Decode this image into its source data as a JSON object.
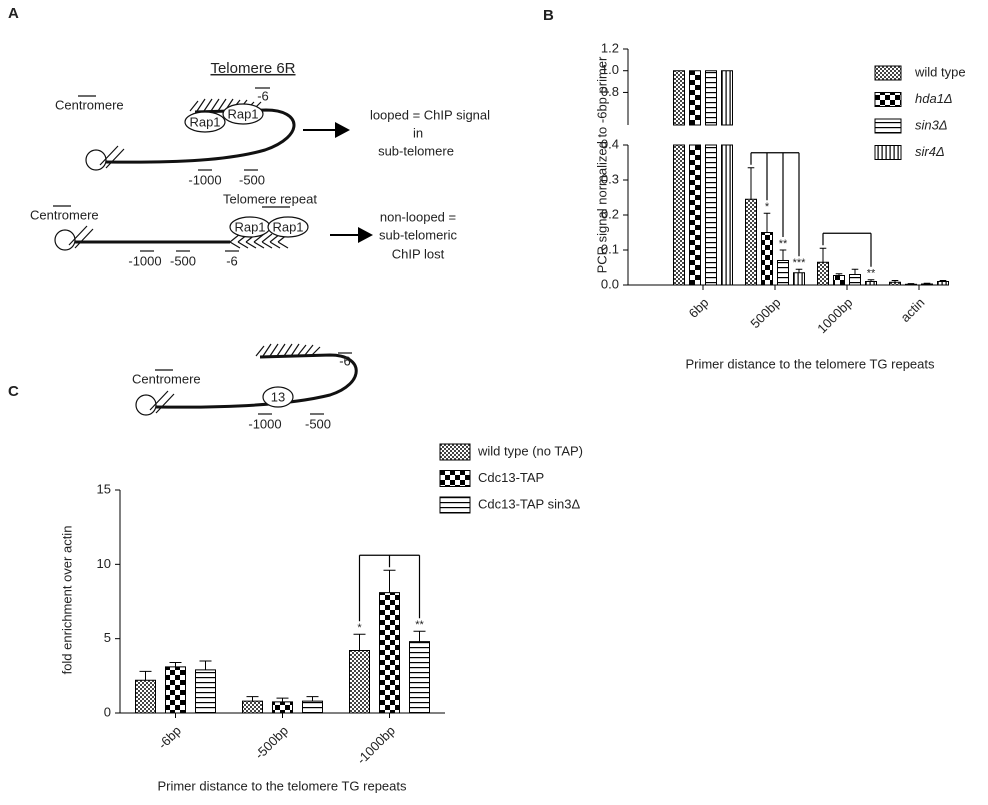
{
  "panel_labels": [
    "A",
    "B",
    "C"
  ],
  "diagram_a": {
    "title": "Telomere 6R",
    "looped": {
      "centromere": "Centromere",
      "proteins": [
        "Rap1",
        "Rap1"
      ],
      "positions": [
        "-6",
        "-1000",
        "-500"
      ],
      "outcome": [
        "looped = ChIP signal",
        "in",
        "sub-telomere"
      ]
    },
    "non_looped": {
      "repeat": "Telomere repeat",
      "centromere": "Centromere",
      "proteins": [
        "Rap1",
        "Rap1"
      ],
      "positions": [
        "-1000",
        "-500",
        "-6"
      ],
      "outcome": [
        "non-looped =",
        "sub-telomeric",
        "ChIP lost"
      ]
    }
  },
  "diagram_c": {
    "centromere": "Centromere",
    "protein": "13",
    "positions": [
      "-6",
      "-1000",
      "-500"
    ]
  },
  "chart_data": [
    {
      "type": "bar",
      "y_label": "PCR signal normalized to -6bp primer",
      "x_label": "Primer distance to the telomere TG repeats",
      "categories": [
        "6bp",
        "500bp",
        "1000bp",
        "actin"
      ],
      "ylim": [
        0,
        1.2
      ],
      "y_break": [
        0.4,
        0.5
      ],
      "yticks": [
        {
          "value": 0,
          "label": "0.0"
        },
        0.1,
        0.2,
        0.3,
        0.4,
        0.8,
        {
          "value": 1,
          "label": "1.0"
        },
        1.2
      ],
      "series": [
        {
          "name": "wild type",
          "pattern": "checker-small",
          "color": "#000000",
          "values": [
            1.0,
            0.245,
            0.065,
            0.008
          ],
          "errors": [
            0,
            0.09,
            0.04,
            0.005
          ],
          "significance": [
            null,
            null,
            null,
            null
          ]
        },
        {
          "name": "hda1Δ",
          "italic": true,
          "pattern": "checker-large",
          "color": "#000000",
          "values": [
            1.0,
            0.15,
            0.027,
            0.002
          ],
          "errors": [
            0,
            0.055,
            0.005,
            0.002
          ],
          "significance": [
            null,
            "*",
            null,
            null
          ]
        },
        {
          "name": "sin3Δ",
          "italic": true,
          "pattern": "hlines",
          "color": "#000000",
          "values": [
            1.0,
            0.07,
            0.03,
            0.003
          ],
          "errors": [
            0,
            0.03,
            0.015,
            0.002
          ],
          "significance": [
            null,
            "**",
            null,
            null
          ]
        },
        {
          "name": "sir4Δ",
          "italic": true,
          "pattern": "vlines",
          "color": "#000000",
          "values": [
            1.0,
            0.035,
            0.01,
            0.01
          ],
          "errors": [
            0,
            0.01,
            0.005,
            0.003
          ],
          "significance": [
            null,
            "***",
            "**",
            null
          ]
        }
      ]
    },
    {
      "type": "bar",
      "y_label": "fold enrichment over actin",
      "x_label": "Primer distance to the telomere TG repeats",
      "categories": [
        "-6bp",
        "-500bp",
        "-1000bp"
      ],
      "ylim": [
        0,
        15
      ],
      "yticks": [
        0,
        5,
        10,
        15
      ],
      "series": [
        {
          "name": "wild type (no TAP)",
          "pattern": "checker-small",
          "color": "#000000",
          "values": [
            2.2,
            0.8,
            4.2
          ],
          "errors": [
            0.6,
            0.3,
            1.1
          ],
          "significance": [
            null,
            null,
            "*"
          ]
        },
        {
          "name": "Cdc13-TAP",
          "pattern": "checker-large",
          "color": "#000000",
          "values": [
            3.1,
            0.75,
            8.1
          ],
          "errors": [
            0.3,
            0.25,
            1.5
          ],
          "significance": [
            null,
            null,
            null
          ]
        },
        {
          "name": "Cdc13-TAP sin3Δ",
          "pattern": "hlines",
          "color": "#000000",
          "values": [
            2.9,
            0.8,
            4.8
          ],
          "errors": [
            0.6,
            0.3,
            0.7
          ],
          "significance": [
            null,
            null,
            "**"
          ]
        }
      ]
    }
  ]
}
